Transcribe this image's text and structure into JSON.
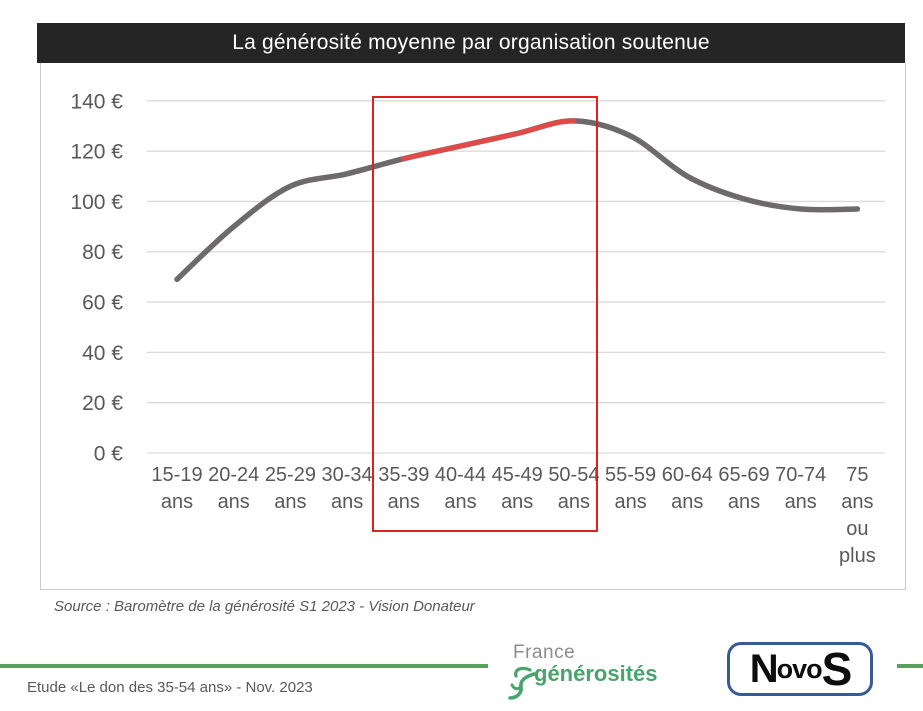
{
  "title_bar": {
    "text": "La générosité moyenne par organisation soutenue",
    "bg_color": "#252525",
    "text_color": "#ffffff"
  },
  "source": {
    "text": "Source : Baromètre de la générosité S1 2023 - Vision Donateur"
  },
  "footer": {
    "note": "Etude «Le don des 35-54 ans» - Nov. 2023",
    "rule_color": "#58a15d",
    "logos": {
      "france_generosites": {
        "line1": "France",
        "line2": "générosités",
        "icon": "leaping-figure-icon",
        "brand_green": "#47a46a",
        "gray": "#8c8c8c"
      },
      "novos": {
        "first": "N",
        "middle": "ovo",
        "last": "S",
        "border_color": "#3a5a96",
        "text_color": "#0d0d0d"
      }
    }
  },
  "chart_data": {
    "type": "line",
    "title": "La générosité moyenne par organisation soutenue",
    "categories": [
      "15-19 ans",
      "20-24 ans",
      "25-29 ans",
      "30-34 ans",
      "35-39 ans",
      "40-44 ans",
      "45-49 ans",
      "50-54 ans",
      "55-59 ans",
      "60-64 ans",
      "65-69 ans",
      "70-74 ans",
      "75 ans ou plus"
    ],
    "tick_lines": [
      [
        "15-19",
        "ans"
      ],
      [
        "20-24",
        "ans"
      ],
      [
        "25-29",
        "ans"
      ],
      [
        "30-34",
        "ans"
      ],
      [
        "35-39",
        "ans"
      ],
      [
        "40-44",
        "ans"
      ],
      [
        "45-49",
        "ans"
      ],
      [
        "50-54",
        "ans"
      ],
      [
        "55-59",
        "ans"
      ],
      [
        "60-64",
        "ans"
      ],
      [
        "65-69",
        "ans"
      ],
      [
        "70-74",
        "ans"
      ],
      [
        "75",
        "ans",
        "ou",
        "plus"
      ]
    ],
    "values": [
      69,
      90,
      106,
      111,
      117,
      122,
      127,
      132,
      126,
      110,
      101,
      97,
      97
    ],
    "unit": "€",
    "ylabel": "",
    "xlabel": "",
    "ylim": [
      0,
      140
    ],
    "y_tick_step": 20,
    "y_tick_labels": [
      "0 €",
      "20 €",
      "40 €",
      "60 €",
      "80 €",
      "100 €",
      "120 €",
      "140 €"
    ],
    "grid": true,
    "legend": "none",
    "line_color": "#6c6a6a",
    "grid_color": "#d9d9d9",
    "tick_color": "#595959",
    "smoothed": true,
    "highlight_segment": {
      "from_index": 4,
      "to_index": 7,
      "color": "#e24a4a"
    },
    "highlight_box": {
      "from_category": "35-39 ans",
      "to_category": "50-54 ans",
      "color": "#e01f1f"
    }
  }
}
